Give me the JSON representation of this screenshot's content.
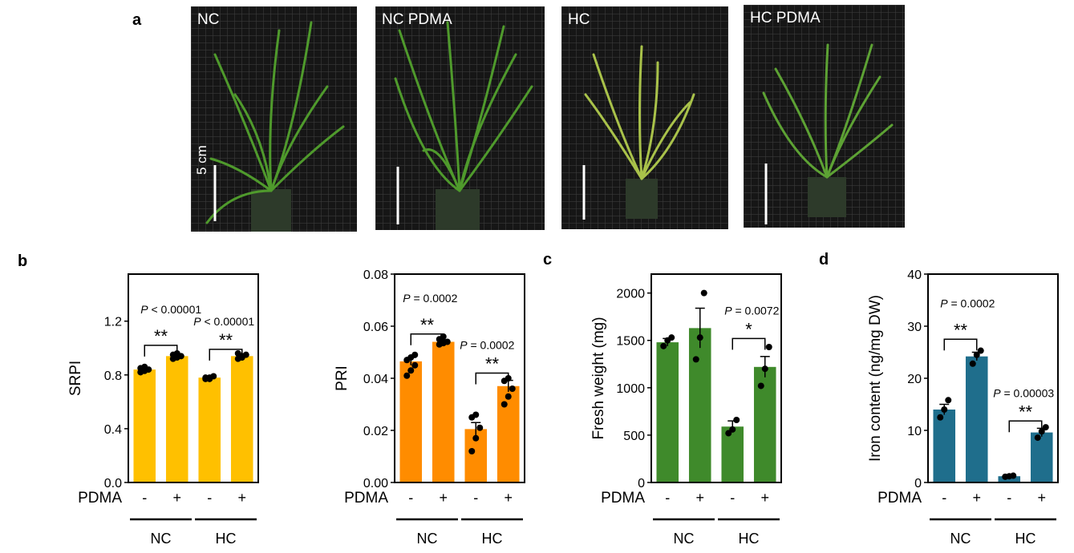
{
  "panel_letters": {
    "a": "a",
    "b": "b",
    "c": "c",
    "d": "d"
  },
  "photos": [
    {
      "label": "NC"
    },
    {
      "label": "NC PDMA"
    },
    {
      "label": "HC"
    },
    {
      "label": "HC PDMA"
    }
  ],
  "scale_bar_label": "5 cm",
  "colors": {
    "yellow": "#FFC000",
    "orange": "#FF8C00",
    "green": "#3F8A2B",
    "blue": "#1F6E8C"
  },
  "chart_data": [
    {
      "type": "bar",
      "panel": "b",
      "ylabel": "SRPI",
      "ylim": [
        0,
        1.55
      ],
      "yticks": [
        "0.0",
        "0.4",
        "0.8",
        "1.2"
      ],
      "ytick_values": [
        0,
        0.4,
        0.8,
        1.2
      ],
      "categories": [
        "-",
        "+",
        "-",
        "+"
      ],
      "group_label": "PDMA",
      "groups": [
        "NC",
        "HC"
      ],
      "values": [
        0.84,
        0.94,
        0.78,
        0.94
      ],
      "errors": [
        0.01,
        0.01,
        0.01,
        0.01
      ],
      "points": [
        [
          0.82,
          0.83,
          0.84,
          0.85,
          0.86
        ],
        [
          0.92,
          0.93,
          0.94,
          0.95,
          0.96
        ],
        [
          0.77,
          0.78,
          0.79,
          0.78,
          0.77
        ],
        [
          0.92,
          0.93,
          0.95,
          0.96,
          0.94
        ]
      ],
      "color": "#FFC000",
      "annotations": [
        {
          "p": "P < 0.00001",
          "stars": "**"
        },
        {
          "p": "P < 0.00001",
          "stars": "**"
        }
      ]
    },
    {
      "type": "bar",
      "panel": "b",
      "ylabel": "PRI",
      "ylim": [
        0,
        0.08
      ],
      "yticks": [
        "0.00",
        "0.02",
        "0.04",
        "0.06",
        "0.08"
      ],
      "ytick_values": [
        0,
        0.02,
        0.04,
        0.06,
        0.08
      ],
      "categories": [
        "-",
        "+",
        "-",
        "+"
      ],
      "group_label": "PDMA",
      "groups": [
        "NC",
        "HC"
      ],
      "values": [
        0.0465,
        0.054,
        0.0205,
        0.037
      ],
      "errors": [
        0.0015,
        0.0008,
        0.0025,
        0.0022
      ],
      "points": [
        [
          0.041,
          0.043,
          0.045,
          0.047,
          0.048,
          0.049
        ],
        [
          0.053,
          0.0535,
          0.054,
          0.055,
          0.056
        ],
        [
          0.012,
          0.017,
          0.021,
          0.025,
          0.026
        ],
        [
          0.03,
          0.033,
          0.036,
          0.039,
          0.04
        ]
      ],
      "color": "#FF8C00",
      "annotations": [
        {
          "p": "P = 0.0002",
          "stars": "**"
        },
        {
          "p": "P = 0.0002",
          "stars": "**"
        }
      ]
    },
    {
      "type": "bar",
      "panel": "c",
      "ylabel": "Fresh weight (mg)",
      "ylim": [
        0,
        2200
      ],
      "yticks": [
        "0",
        "500",
        "1000",
        "1500",
        "2000"
      ],
      "ytick_values": [
        0,
        500,
        1000,
        1500,
        2000
      ],
      "categories": [
        "-",
        "+",
        "-",
        "+"
      ],
      "group_label": "PDMA",
      "groups": [
        "NC",
        "HC"
      ],
      "values": [
        1480,
        1630,
        590,
        1220
      ],
      "errors": [
        40,
        210,
        60,
        110
      ],
      "points": [
        [
          1440,
          1500,
          1530
        ],
        [
          1300,
          1530,
          2000
        ],
        [
          520,
          560,
          660
        ],
        [
          1020,
          1200,
          1430
        ]
      ],
      "color": "#3F8A2B",
      "annotations": [
        {
          "p": "P = 0.0072",
          "stars": "*"
        }
      ]
    },
    {
      "type": "bar",
      "panel": "d",
      "ylabel": "Iron content (ng/mg DW)",
      "ylim": [
        0,
        40
      ],
      "yticks": [
        "0",
        "10",
        "20",
        "30",
        "40"
      ],
      "ytick_values": [
        0,
        10,
        20,
        30,
        40
      ],
      "categories": [
        "-",
        "+",
        "-",
        "+"
      ],
      "group_label": "PDMA",
      "groups": [
        "NC",
        "HC"
      ],
      "values": [
        14,
        24.2,
        1.2,
        9.6
      ],
      "errors": [
        1.0,
        0.8,
        0.1,
        0.8
      ],
      "points": [
        [
          12.5,
          14,
          15.8
        ],
        [
          22.8,
          24.5,
          25.3
        ],
        [
          1.1,
          1.2,
          1.3
        ],
        [
          8.6,
          9.8,
          10.6
        ]
      ],
      "color": "#1F6E8C",
      "annotations": [
        {
          "p": "P = 0.0002",
          "stars": "**"
        },
        {
          "p": "P = 0.00003",
          "stars": "**"
        }
      ]
    }
  ]
}
